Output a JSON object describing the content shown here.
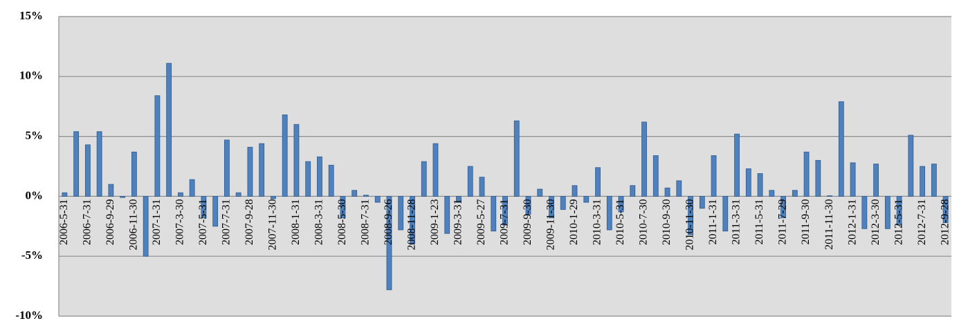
{
  "chart_data": {
    "type": "bar",
    "categories": [
      "2006-5-31",
      null,
      "2006-7-31",
      null,
      "2006-9-29",
      null,
      "2006-11-30",
      null,
      "2007-1-31",
      null,
      "2007-3-30",
      null,
      "2007-5-31",
      null,
      "2007-7-31",
      null,
      "2007-9-28",
      null,
      "2007-11-30",
      null,
      "2008-1-31",
      null,
      "2008-3-31",
      null,
      "2008-5-30",
      null,
      "2008-7-31",
      null,
      "2008-9-26",
      null,
      "2008-11-28",
      null,
      "2009-1-23",
      null,
      "2009-3-31",
      null,
      "2009-5-27",
      null,
      "2009-7-31",
      null,
      "2009-9-30",
      null,
      "2009-11-30",
      null,
      "2010-1-29",
      null,
      "2010-3-31",
      null,
      "2010-5-31",
      null,
      "2010-7-30",
      null,
      "2010-9-30",
      null,
      "2010-11-30",
      null,
      "2011-1-31",
      null,
      "2011-3-31",
      null,
      "2011-5-31",
      null,
      "2011-7-29",
      null,
      "2011-9-30",
      null,
      "2011-11-30",
      null,
      "2012-1-31",
      null,
      "2012-3-30",
      null,
      "2012-5-31",
      null,
      "2012-7-31",
      null,
      "2012-9-28"
    ],
    "values": [
      0.3,
      5.4,
      4.3,
      5.4,
      1.0,
      -0.1,
      3.7,
      -5.0,
      8.4,
      11.1,
      0.3,
      1.4,
      -1.8,
      -2.5,
      4.7,
      0.3,
      4.1,
      4.4,
      -0.2,
      6.8,
      6.0,
      2.9,
      3.3,
      2.6,
      -1.8,
      0.5,
      0.1,
      -0.5,
      -7.8,
      -2.8,
      -4.0,
      2.9,
      4.4,
      -3.1,
      -0.5,
      2.5,
      1.6,
      -2.9,
      -2.4,
      6.3,
      -1.5,
      0.6,
      -1.8,
      -1.1,
      0.9,
      -0.5,
      2.4,
      -2.8,
      -1.3,
      0.9,
      6.2,
      3.4,
      0.7,
      1.3,
      -3.2,
      -1.0,
      3.4,
      -2.9,
      5.2,
      2.3,
      1.9,
      0.5,
      -1.8,
      0.5,
      3.7,
      3.0,
      0.05,
      7.9,
      2.8,
      -2.7,
      2.7,
      -2.7,
      -2.4,
      5.1,
      2.5,
      2.7,
      -2.2
    ],
    "color": "#4f81bd",
    "ylim": [
      -10,
      15
    ],
    "yticks": [
      {
        "value": -10,
        "label": "-10%"
      },
      {
        "value": -5,
        "label": "-5%"
      },
      {
        "value": 0,
        "label": "0%"
      },
      {
        "value": 5,
        "label": "5%"
      },
      {
        "value": 10,
        "label": "10%"
      },
      {
        "value": 15,
        "label": "15%"
      }
    ],
    "grid": true
  }
}
